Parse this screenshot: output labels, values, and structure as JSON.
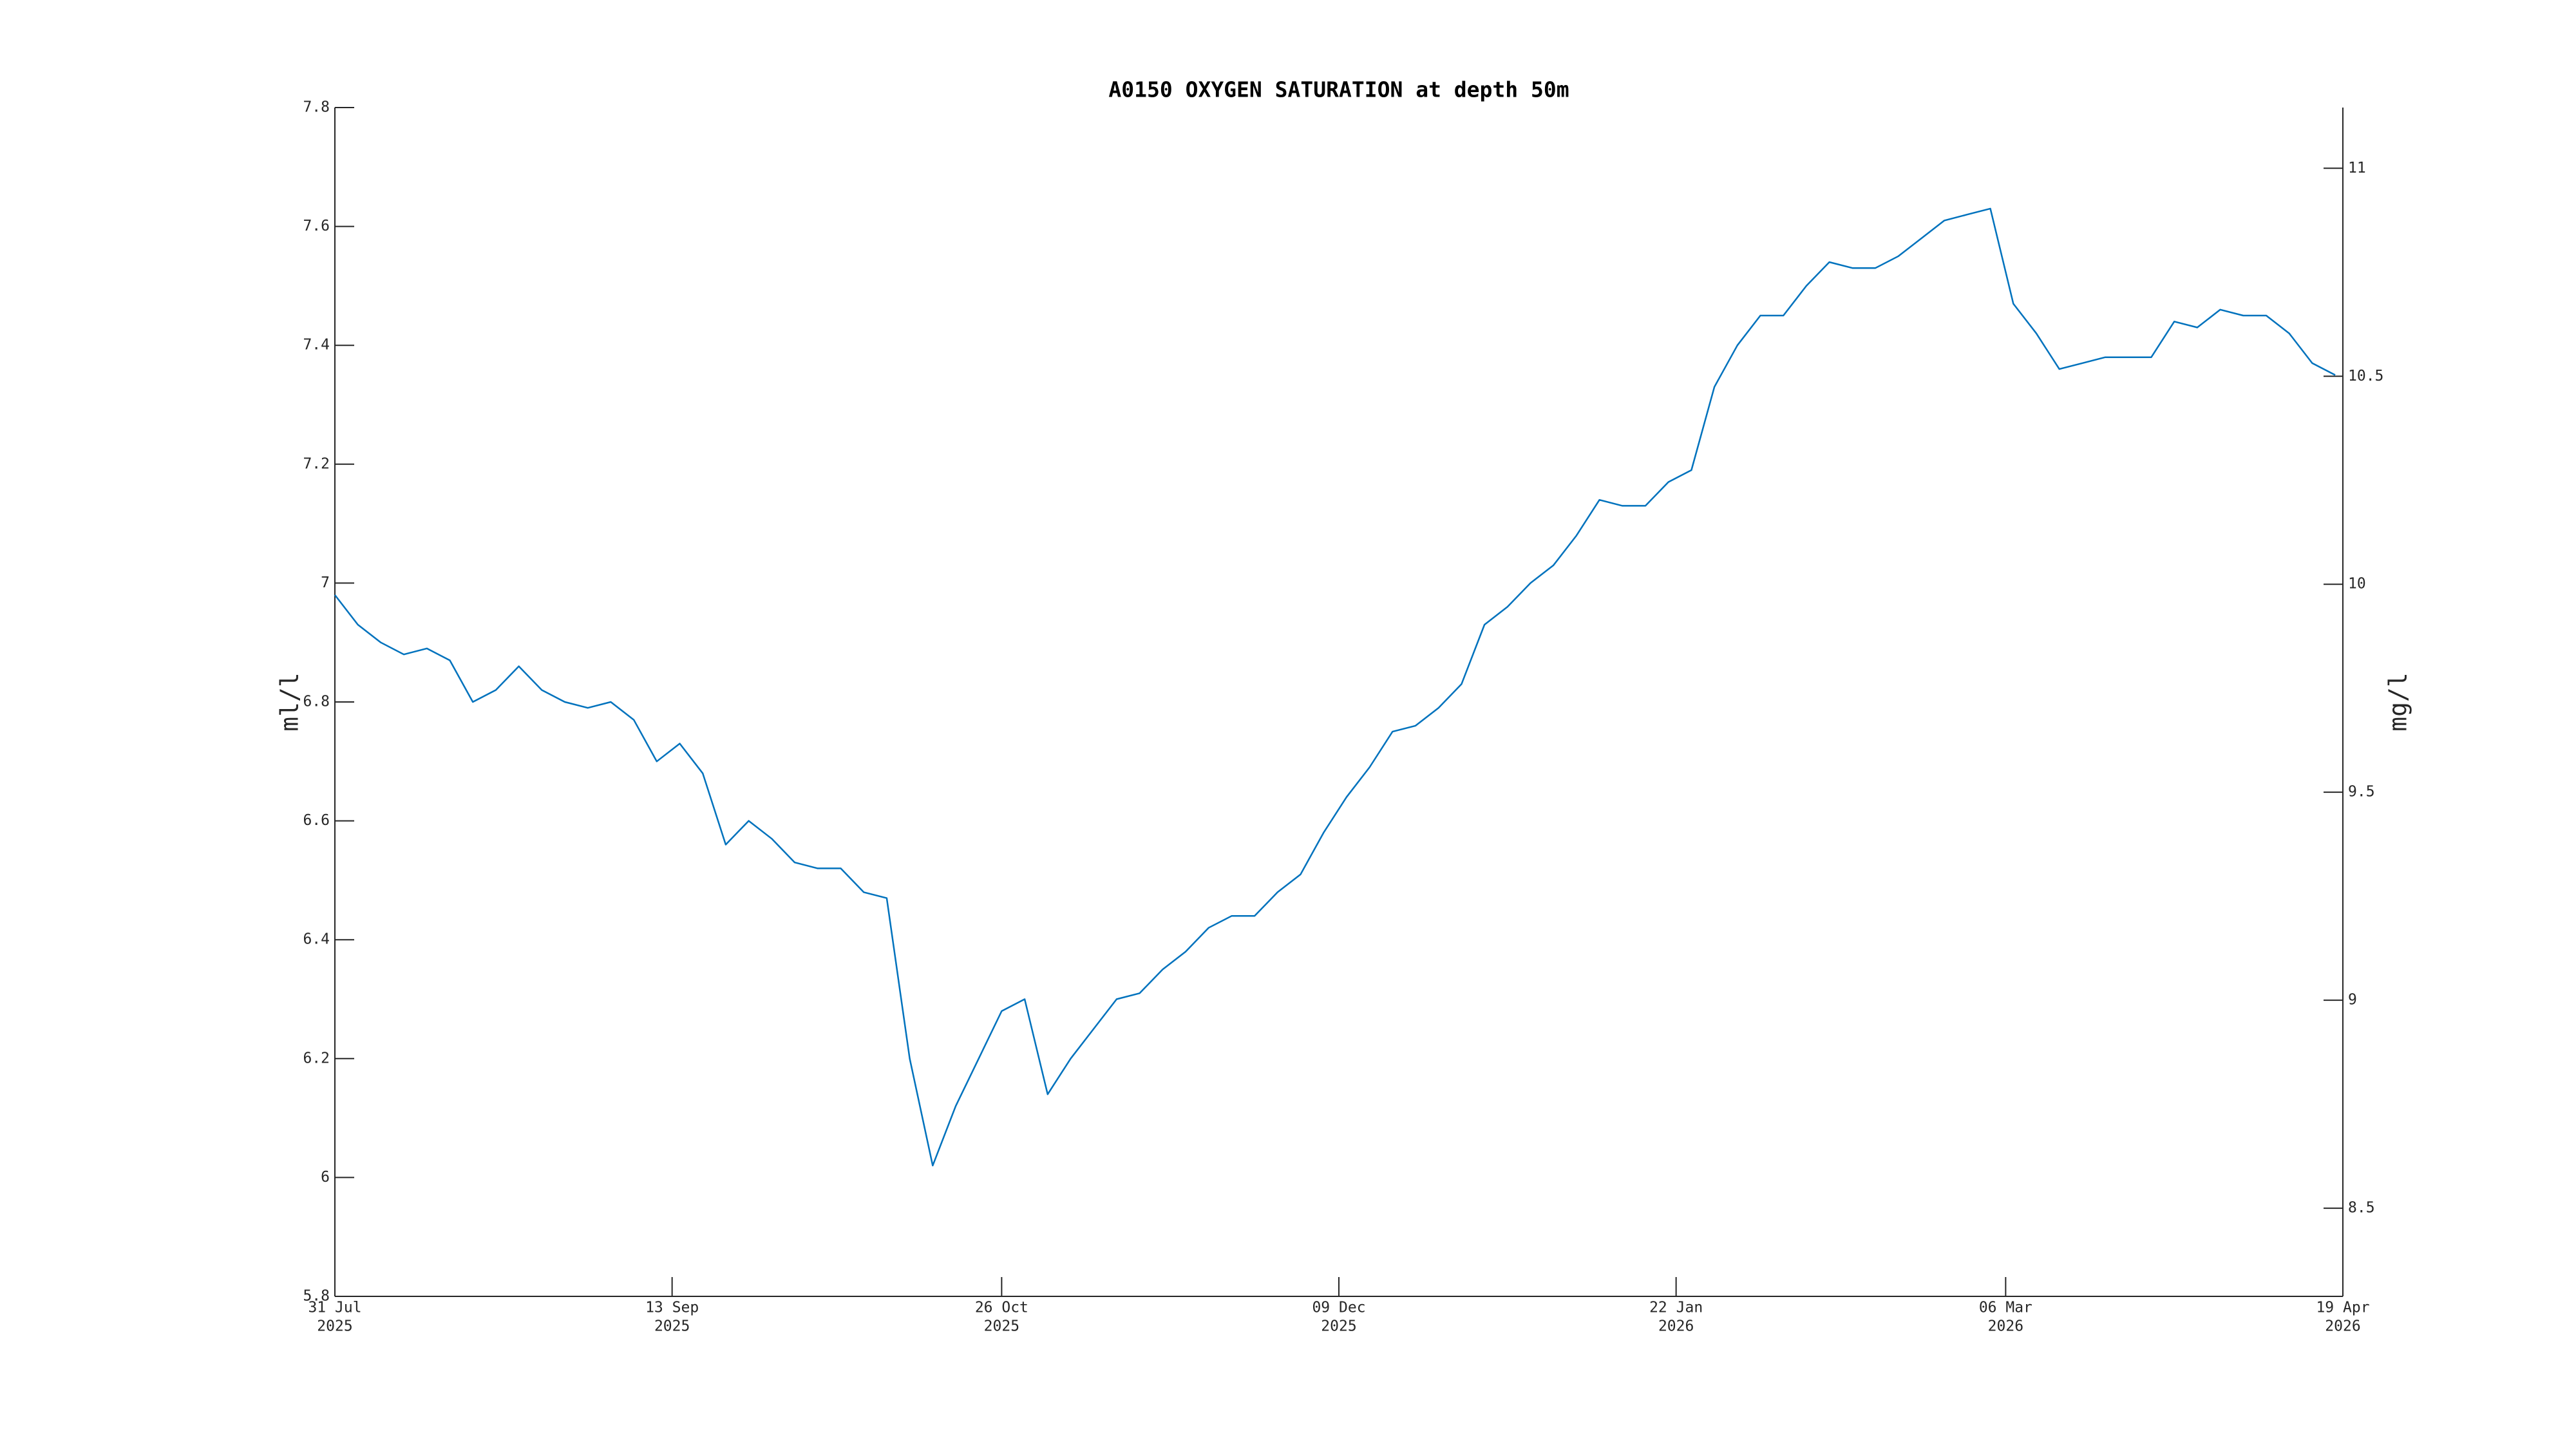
{
  "chart_data": {
    "type": "line",
    "title": "A0150 OXYGEN SATURATION at depth 50m",
    "ylabel": "ml/l",
    "y2label": "mg/l",
    "x": [
      "2025-07-31",
      "2025-08-03",
      "2025-08-06",
      "2025-08-09",
      "2025-08-12",
      "2025-08-15",
      "2025-08-18",
      "2025-08-21",
      "2025-08-24",
      "2025-08-27",
      "2025-08-30",
      "2025-09-02",
      "2025-09-05",
      "2025-09-08",
      "2025-09-11",
      "2025-09-14",
      "2025-09-17",
      "2025-09-20",
      "2025-09-23",
      "2025-09-26",
      "2025-09-29",
      "2025-10-02",
      "2025-10-05",
      "2025-10-08",
      "2025-10-11",
      "2025-10-14",
      "2025-10-17",
      "2025-10-20",
      "2025-10-23",
      "2025-10-26",
      "2025-10-29",
      "2025-11-01",
      "2025-11-04",
      "2025-11-07",
      "2025-11-10",
      "2025-11-13",
      "2025-11-16",
      "2025-11-19",
      "2025-11-22",
      "2025-11-25",
      "2025-11-28",
      "2025-12-01",
      "2025-12-04",
      "2025-12-07",
      "2025-12-10",
      "2025-12-13",
      "2025-12-16",
      "2025-12-19",
      "2025-12-22",
      "2025-12-25",
      "2025-12-28",
      "2025-12-31",
      "2026-01-03",
      "2026-01-06",
      "2026-01-09",
      "2026-01-12",
      "2026-01-15",
      "2026-01-18",
      "2026-01-21",
      "2026-01-24",
      "2026-01-27",
      "2026-01-30",
      "2026-02-02",
      "2026-02-05",
      "2026-02-08",
      "2026-02-11",
      "2026-02-14",
      "2026-02-17",
      "2026-02-20",
      "2026-02-23",
      "2026-02-26",
      "2026-03-01",
      "2026-03-04",
      "2026-03-07",
      "2026-03-10",
      "2026-03-13",
      "2026-03-16",
      "2026-03-19",
      "2026-03-22",
      "2026-03-25",
      "2026-03-28",
      "2026-03-31",
      "2026-04-03",
      "2026-04-06",
      "2026-04-09",
      "2026-04-12",
      "2026-04-15",
      "2026-04-18"
    ],
    "series": [
      {
        "color": "#0072bd",
        "values": [
          6.98,
          6.93,
          6.9,
          6.88,
          6.89,
          6.87,
          6.8,
          6.82,
          6.86,
          6.82,
          6.8,
          6.79,
          6.8,
          6.77,
          6.7,
          6.73,
          6.68,
          6.56,
          6.6,
          6.57,
          6.53,
          6.52,
          6.52,
          6.48,
          6.47,
          6.2,
          6.02,
          6.12,
          6.2,
          6.28,
          6.3,
          6.14,
          6.2,
          6.25,
          6.3,
          6.31,
          6.35,
          6.38,
          6.42,
          6.44,
          6.44,
          6.48,
          6.51,
          6.58,
          6.64,
          6.69,
          6.75,
          6.76,
          6.79,
          6.83,
          6.93,
          6.96,
          7.0,
          7.03,
          7.08,
          7.14,
          7.13,
          7.13,
          7.17,
          7.19,
          7.33,
          7.4,
          7.45,
          7.45,
          7.5,
          7.54,
          7.53,
          7.53,
          7.55,
          7.58,
          7.61,
          7.62,
          7.63,
          7.47,
          7.42,
          7.36,
          7.37,
          7.38,
          7.38,
          7.38,
          7.44,
          7.43,
          7.46,
          7.45,
          7.45,
          7.42,
          7.37,
          7.35
        ]
      }
    ],
    "xlim": [
      "2025-07-31",
      "2026-04-19"
    ],
    "xticks": [
      {
        "value": "2025-07-31",
        "label": [
          "31 Jul",
          "2025"
        ]
      },
      {
        "value": "2025-09-13",
        "label": [
          "13 Sep",
          "2025"
        ]
      },
      {
        "value": "2025-10-26",
        "label": [
          "26 Oct",
          "2025"
        ]
      },
      {
        "value": "2025-12-09",
        "label": [
          "09 Dec",
          "2025"
        ]
      },
      {
        "value": "2026-01-22",
        "label": [
          "22 Jan",
          "2026"
        ]
      },
      {
        "value": "2026-03-06",
        "label": [
          "06 Mar",
          "2026"
        ]
      },
      {
        "value": "2026-04-19",
        "label": [
          "19 Apr",
          "2026"
        ]
      }
    ],
    "ylim": [
      5.8,
      7.8
    ],
    "yticks": [
      5.8,
      6,
      6.2,
      6.4,
      6.6,
      6.8,
      7,
      7.2,
      7.4,
      7.6,
      7.8
    ],
    "y2lim": [
      8.288,
      11.146
    ],
    "y2ticks": [
      8.5,
      9,
      9.5,
      10,
      10.5,
      11
    ]
  }
}
